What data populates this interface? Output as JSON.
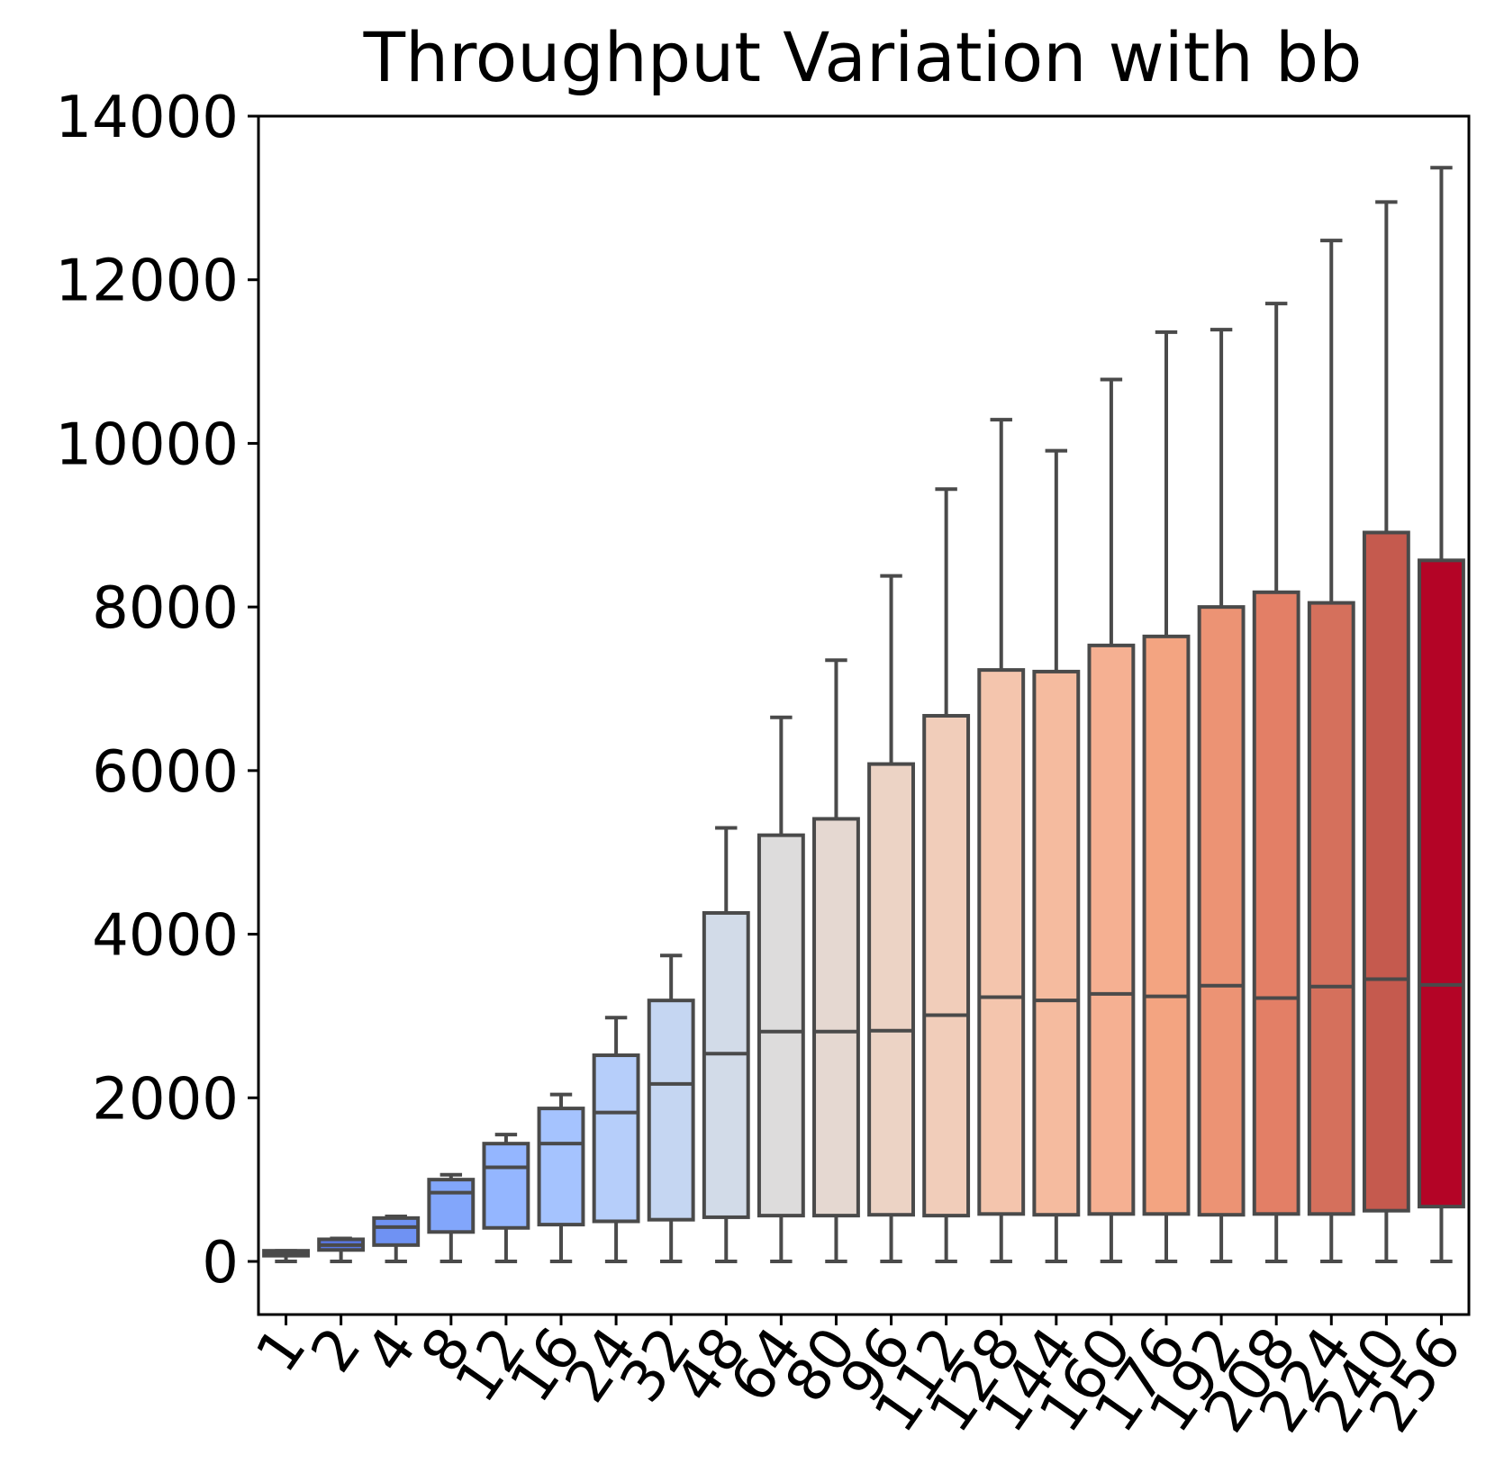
{
  "chart_data": {
    "type": "box",
    "title": "Throughput Variation with bb",
    "xlabel": "",
    "ylabel": "",
    "ylim": [
      -700,
      14000
    ],
    "yticks": [
      0,
      2000,
      4000,
      6000,
      8000,
      10000,
      12000,
      14000
    ],
    "categories": [
      "1",
      "2",
      "4",
      "8",
      "12",
      "16",
      "24",
      "32",
      "48",
      "64",
      "80",
      "96",
      "112",
      "128",
      "144",
      "160",
      "176",
      "192",
      "208",
      "224",
      "240",
      "256"
    ],
    "boxes": [
      {
        "category": "1",
        "whislo": 0,
        "q1": 70,
        "median": 105,
        "q3": 130,
        "whishi": 130,
        "color": "#3b4cc0"
      },
      {
        "category": "2",
        "whislo": 0,
        "q1": 140,
        "median": 200,
        "q3": 270,
        "whishi": 280,
        "color": "#5a78e4"
      },
      {
        "category": "4",
        "whislo": 0,
        "q1": 200,
        "median": 420,
        "q3": 530,
        "whishi": 550,
        "color": "#6f92f3"
      },
      {
        "category": "8",
        "whislo": 0,
        "q1": 360,
        "median": 840,
        "q3": 1000,
        "whishi": 1060,
        "color": "#82a6fb"
      },
      {
        "category": "12",
        "whislo": 0,
        "q1": 410,
        "median": 1150,
        "q3": 1440,
        "whishi": 1550,
        "color": "#94b6ff"
      },
      {
        "category": "16",
        "whislo": 0,
        "q1": 450,
        "median": 1440,
        "q3": 1870,
        "whishi": 2040,
        "color": "#a5c3fe"
      },
      {
        "category": "24",
        "whislo": 0,
        "q1": 490,
        "median": 1820,
        "q3": 2520,
        "whishi": 2980,
        "color": "#b6cefa"
      },
      {
        "category": "32",
        "whislo": 0,
        "q1": 510,
        "median": 2170,
        "q3": 3190,
        "whishi": 3740,
        "color": "#c5d6f2"
      },
      {
        "category": "48",
        "whislo": 0,
        "q1": 540,
        "median": 2540,
        "q3": 4260,
        "whishi": 5300,
        "color": "#d2dbe8"
      },
      {
        "category": "64",
        "whislo": 0,
        "q1": 560,
        "median": 2810,
        "q3": 5210,
        "whishi": 6650,
        "color": "#dddcdc"
      },
      {
        "category": "80",
        "whislo": 0,
        "q1": 560,
        "median": 2810,
        "q3": 5410,
        "whishi": 7350,
        "color": "#e5d8d1"
      },
      {
        "category": "96",
        "whislo": 0,
        "q1": 570,
        "median": 2820,
        "q3": 6080,
        "whishi": 8380,
        "color": "#ecd3c5"
      },
      {
        "category": "112",
        "whislo": 0,
        "q1": 560,
        "median": 3010,
        "q3": 6670,
        "whishi": 9440,
        "color": "#f1cdba"
      },
      {
        "category": "128",
        "whislo": 0,
        "q1": 580,
        "median": 3230,
        "q3": 7230,
        "whishi": 10290,
        "color": "#f4c5ad"
      },
      {
        "category": "144",
        "whislo": 0,
        "q1": 570,
        "median": 3190,
        "q3": 7210,
        "whishi": 9910,
        "color": "#f5bb9f"
      },
      {
        "category": "160",
        "whislo": 0,
        "q1": 580,
        "median": 3270,
        "q3": 7530,
        "whishi": 10780,
        "color": "#f5b092"
      },
      {
        "category": "176",
        "whislo": 0,
        "q1": 580,
        "median": 3240,
        "q3": 7640,
        "whishi": 11360,
        "color": "#f3a481"
      },
      {
        "category": "192",
        "whislo": 0,
        "q1": 570,
        "median": 3370,
        "q3": 8000,
        "whishi": 11390,
        "color": "#ec9374"
      },
      {
        "category": "208",
        "whislo": 0,
        "q1": 580,
        "median": 3220,
        "q3": 8180,
        "whishi": 11710,
        "color": "#e37f66"
      },
      {
        "category": "224",
        "whislo": 0,
        "q1": 580,
        "median": 3360,
        "q3": 8050,
        "whishi": 12480,
        "color": "#d5705c"
      },
      {
        "category": "240",
        "whislo": 0,
        "q1": 620,
        "median": 3450,
        "q3": 8910,
        "whishi": 12950,
        "color": "#c55a4e"
      },
      {
        "category": "256",
        "whislo": 0,
        "q1": 670,
        "median": 3380,
        "q3": 8570,
        "whishi": 13370,
        "color": "#b40426"
      }
    ]
  }
}
